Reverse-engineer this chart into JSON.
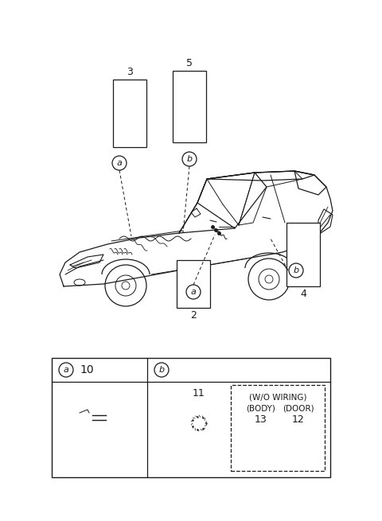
{
  "bg_color": "#ffffff",
  "fig_width": 4.8,
  "fig_height": 6.55,
  "dpi": 100,
  "lc": "#1a1a1a",
  "tc": "#1a1a1a",
  "parts_table": {
    "item_10": "10",
    "item_11": "11",
    "wo_wiring": "(W/O WIRING)",
    "body_label": "(BODY)",
    "body_num": "13",
    "door_label": "(DOOR)",
    "door_num": "12"
  },
  "callout_nums": [
    "2",
    "3",
    "4",
    "5"
  ],
  "callout_labels": [
    "a",
    "b"
  ]
}
